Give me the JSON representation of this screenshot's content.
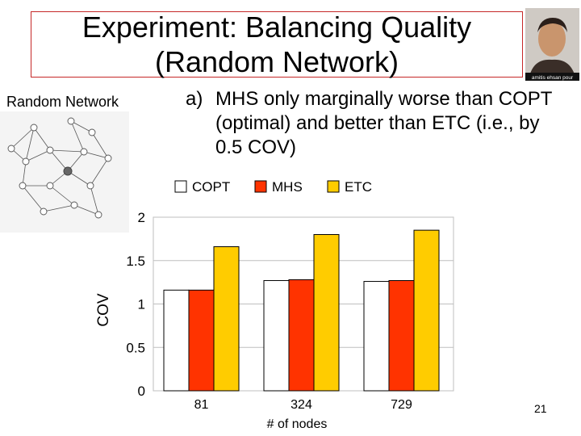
{
  "slide": {
    "title_line1": "Experiment: Balancing Quality",
    "title_line2": "(Random Network)",
    "section_label": "Random Network",
    "bullet_marker": "a)",
    "bullet_text": "MHS only marginally worse than COPT (optimal) and better than ETC (i.e., by 0.5 COV)",
    "page_number": "21",
    "photo_caption": "amitis ehsan pour"
  },
  "chart_data": {
    "type": "bar",
    "title": "",
    "xlabel": "# of nodes",
    "ylabel": "COV",
    "categories": [
      "81",
      "324",
      "729"
    ],
    "ylim": [
      0,
      2
    ],
    "yticks": [
      "0",
      "0.5",
      "1",
      "1.5",
      "2"
    ],
    "grid": true,
    "legend_placement": "top",
    "series": [
      {
        "name": "COPT",
        "values": [
          1.16,
          1.27,
          1.26
        ],
        "color": "#ffffff"
      },
      {
        "name": "MHS",
        "values": [
          1.16,
          1.28,
          1.27
        ],
        "color": "#ff3300"
      },
      {
        "name": "ETC",
        "values": [
          1.66,
          1.8,
          1.85
        ],
        "color": "#ffcc00"
      }
    ]
  },
  "colors": {
    "title_border": "#c62828",
    "bar_outline": "#000000",
    "grid": "#bfbfbf",
    "network_node": "#ffffff",
    "network_center": "#666666"
  }
}
